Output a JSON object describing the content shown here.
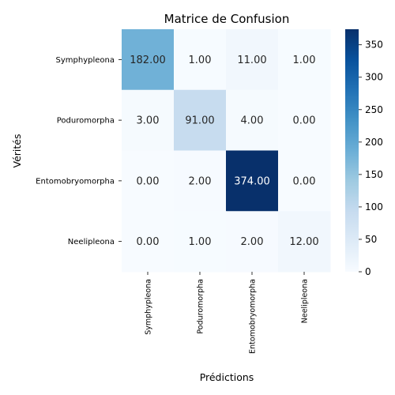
{
  "chart_data": {
    "type": "heatmap",
    "title": "Matrice de Confusion",
    "xlabel": "Prédictions",
    "ylabel": "Vérités",
    "rows": [
      "Symphypleona",
      "Poduromorpha",
      "Entomobryomorpha",
      "Neelipleona"
    ],
    "cols": [
      "Symphypleona",
      "Poduromorpha",
      "Entomobryomorpha",
      "Neelipleona"
    ],
    "values": [
      [
        182,
        1,
        11,
        1
      ],
      [
        3,
        91,
        4,
        0
      ],
      [
        0,
        2,
        374,
        0
      ],
      [
        0,
        1,
        2,
        12
      ]
    ],
    "value_labels": [
      [
        "182.00",
        "1.00",
        "11.00",
        "1.00"
      ],
      [
        "3.00",
        "91.00",
        "4.00",
        "0.00"
      ],
      [
        "0.00",
        "2.00",
        "374.00",
        "0.00"
      ],
      [
        "0.00",
        "1.00",
        "2.00",
        "12.00"
      ]
    ],
    "colormap": "Blues",
    "vmin": 0,
    "vmax": 374,
    "colorbar_ticks": [
      0,
      50,
      100,
      150,
      200,
      250,
      300,
      350
    ],
    "colorbar_tick_labels": [
      "0",
      "50",
      "100",
      "150",
      "200",
      "250",
      "300",
      "350"
    ]
  }
}
